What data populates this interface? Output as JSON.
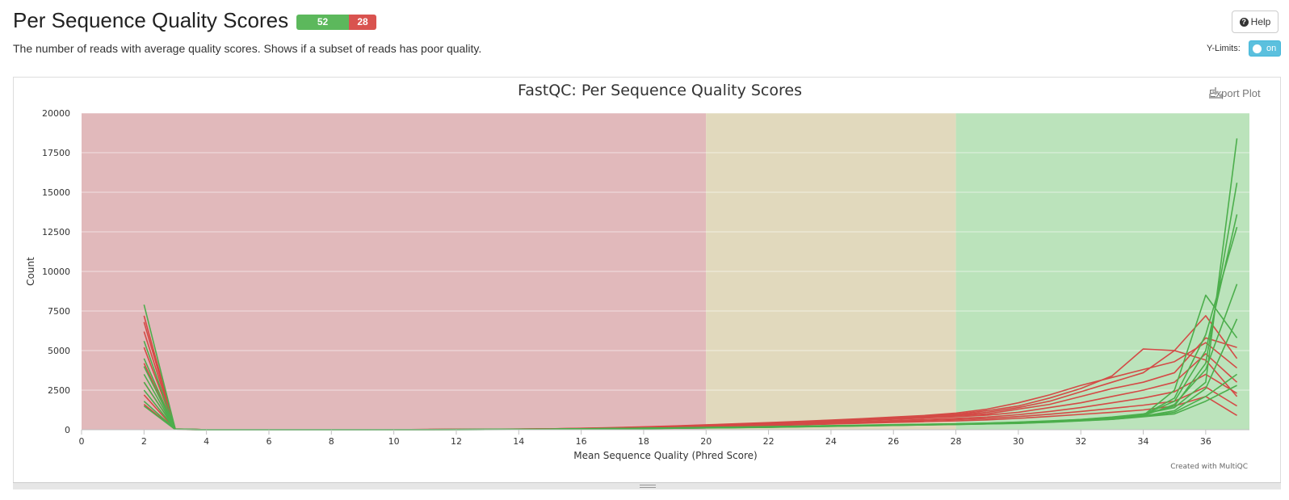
{
  "header": {
    "title": "Per Sequence Quality Scores",
    "badge_pass": "52",
    "badge_fail": "28",
    "subtitle": "The number of reads with average quality scores. Shows if a subset of reads has poor quality.",
    "help_label": "Help",
    "ylimits_label": "Y-Limits:",
    "toggle_label": "on"
  },
  "plot": {
    "export_label": "Export Plot",
    "credit": "Created with MultiQC"
  },
  "colors": {
    "pass": "#5cb85c",
    "fail": "#d9534f",
    "toggle": "#5bc0de",
    "zone_bad": "#e1b9bb",
    "zone_warn": "#e1d9bd",
    "zone_good": "#bbe3bb",
    "line_pass": "#4cae4c",
    "line_fail": "#d44a46"
  },
  "chart_data": {
    "type": "line",
    "title": "FastQC: Per Sequence Quality Scores",
    "xlabel": "Mean Sequence Quality (Phred Score)",
    "ylabel": "Count",
    "xlim": [
      0,
      37.4
    ],
    "ylim": [
      0,
      20000
    ],
    "x_ticks": [
      0,
      2,
      4,
      6,
      8,
      10,
      12,
      14,
      16,
      18,
      20,
      22,
      24,
      26,
      28,
      30,
      32,
      34,
      36
    ],
    "y_ticks": [
      0,
      2500,
      5000,
      7500,
      10000,
      12500,
      15000,
      17500,
      20000
    ],
    "grid": true,
    "legend": "none",
    "bands": [
      {
        "from": 0,
        "to": 20,
        "zone": "bad"
      },
      {
        "from": 20,
        "to": 28,
        "zone": "warn"
      },
      {
        "from": 28,
        "to": 37.4,
        "zone": "good"
      }
    ],
    "x": [
      2,
      3,
      4,
      5,
      6,
      7,
      8,
      9,
      10,
      11,
      12,
      13,
      14,
      15,
      16,
      17,
      18,
      19,
      20,
      21,
      22,
      23,
      24,
      25,
      26,
      27,
      28,
      29,
      30,
      31,
      32,
      33,
      34,
      35,
      36,
      37
    ],
    "series": [
      {
        "status": "pass",
        "values": [
          7900,
          50,
          2,
          2,
          3,
          3,
          4,
          5,
          6,
          10,
          15,
          20,
          30,
          40,
          60,
          80,
          100,
          120,
          150,
          170,
          200,
          230,
          260,
          290,
          320,
          350,
          380,
          420,
          480,
          560,
          650,
          800,
          1000,
          1400,
          3000,
          18400
        ]
      },
      {
        "status": "pass",
        "values": [
          5600,
          40,
          2,
          2,
          3,
          3,
          4,
          5,
          6,
          9,
          14,
          19,
          28,
          38,
          55,
          75,
          95,
          115,
          140,
          160,
          190,
          220,
          250,
          280,
          310,
          340,
          370,
          410,
          470,
          540,
          640,
          780,
          980,
          1500,
          4200,
          15600
        ]
      },
      {
        "status": "pass",
        "values": [
          4500,
          35,
          2,
          2,
          3,
          3,
          4,
          5,
          6,
          9,
          13,
          18,
          27,
          36,
          52,
          70,
          90,
          110,
          135,
          155,
          185,
          210,
          240,
          270,
          300,
          330,
          360,
          400,
          460,
          530,
          620,
          760,
          950,
          1800,
          5000,
          13600
        ]
      },
      {
        "status": "pass",
        "values": [
          4000,
          30,
          2,
          2,
          3,
          3,
          4,
          5,
          6,
          8,
          12,
          17,
          25,
          35,
          50,
          68,
          88,
          108,
          130,
          150,
          175,
          205,
          235,
          265,
          295,
          325,
          355,
          395,
          450,
          520,
          610,
          740,
          930,
          2000,
          6000,
          12800
        ]
      },
      {
        "status": "pass",
        "values": [
          3500,
          30,
          2,
          2,
          3,
          3,
          4,
          5,
          6,
          8,
          12,
          16,
          24,
          33,
          48,
          65,
          85,
          105,
          125,
          145,
          170,
          200,
          230,
          260,
          290,
          320,
          350,
          390,
          440,
          510,
          600,
          720,
          900,
          2500,
          8500,
          5800
        ]
      },
      {
        "status": "pass",
        "values": [
          3000,
          25,
          2,
          2,
          3,
          3,
          4,
          5,
          6,
          8,
          11,
          15,
          22,
          30,
          45,
          62,
          80,
          100,
          120,
          140,
          165,
          195,
          225,
          255,
          285,
          315,
          345,
          380,
          430,
          500,
          590,
          700,
          880,
          1600,
          3800,
          9200
        ]
      },
      {
        "status": "pass",
        "values": [
          2500,
          20,
          2,
          2,
          3,
          3,
          4,
          5,
          6,
          7,
          10,
          14,
          20,
          28,
          42,
          60,
          78,
          98,
          118,
          138,
          160,
          190,
          220,
          250,
          280,
          310,
          340,
          375,
          420,
          490,
          580,
          680,
          860,
          1200,
          2600,
          7000
        ]
      },
      {
        "status": "pass",
        "values": [
          1800,
          20,
          2,
          2,
          3,
          3,
          4,
          5,
          6,
          7,
          10,
          13,
          19,
          26,
          40,
          58,
          75,
          95,
          115,
          135,
          155,
          185,
          215,
          245,
          275,
          305,
          335,
          370,
          410,
          480,
          570,
          660,
          840,
          1100,
          2100,
          3500
        ]
      },
      {
        "status": "pass",
        "values": [
          1500,
          15,
          2,
          2,
          3,
          3,
          4,
          5,
          6,
          7,
          9,
          12,
          18,
          25,
          38,
          55,
          72,
          92,
          112,
          130,
          150,
          180,
          210,
          240,
          270,
          300,
          330,
          365,
          400,
          470,
          560,
          650,
          820,
          1000,
          1800,
          2800
        ]
      },
      {
        "status": "fail",
        "values": [
          7200,
          50,
          3,
          3,
          4,
          5,
          6,
          8,
          10,
          15,
          22,
          30,
          42,
          58,
          90,
          130,
          180,
          240,
          310,
          380,
          450,
          530,
          610,
          700,
          800,
          900,
          1050,
          1300,
          1700,
          2200,
          2800,
          3300,
          3800,
          4300,
          5500,
          3900
        ]
      },
      {
        "status": "fail",
        "values": [
          6800,
          45,
          3,
          3,
          4,
          5,
          6,
          8,
          10,
          14,
          20,
          28,
          40,
          55,
          85,
          120,
          170,
          230,
          290,
          360,
          430,
          510,
          590,
          680,
          780,
          880,
          980,
          1200,
          1500,
          2000,
          2600,
          3400,
          5100,
          5000,
          4400,
          2100
        ]
      },
      {
        "status": "fail",
        "values": [
          6200,
          40,
          3,
          3,
          4,
          5,
          6,
          8,
          10,
          13,
          19,
          27,
          38,
          52,
          80,
          115,
          160,
          220,
          280,
          340,
          410,
          490,
          570,
          660,
          750,
          840,
          930,
          1100,
          1400,
          1800,
          2400,
          3000,
          3600,
          5000,
          7200,
          4500
        ]
      },
      {
        "status": "fail",
        "values": [
          5200,
          35,
          3,
          3,
          4,
          5,
          6,
          8,
          10,
          12,
          18,
          25,
          35,
          48,
          75,
          110,
          150,
          200,
          260,
          320,
          390,
          460,
          540,
          620,
          710,
          800,
          890,
          1000,
          1300,
          1600,
          2100,
          2600,
          3000,
          3600,
          5800,
          5200
        ]
      },
      {
        "status": "fail",
        "values": [
          4200,
          30,
          3,
          3,
          4,
          5,
          6,
          7,
          9,
          12,
          17,
          23,
          33,
          45,
          70,
          100,
          140,
          190,
          240,
          300,
          360,
          430,
          500,
          580,
          660,
          740,
          820,
          920,
          1100,
          1400,
          1700,
          2100,
          2500,
          3000,
          4800,
          3000
        ]
      },
      {
        "status": "fail",
        "values": [
          3000,
          25,
          3,
          3,
          4,
          5,
          6,
          7,
          9,
          11,
          16,
          22,
          31,
          42,
          65,
          95,
          130,
          170,
          220,
          270,
          320,
          380,
          440,
          510,
          580,
          650,
          720,
          800,
          950,
          1150,
          1400,
          1700,
          2000,
          2400,
          3500,
          2300
        ]
      },
      {
        "status": "fail",
        "values": [
          2200,
          20,
          3,
          3,
          4,
          5,
          6,
          7,
          9,
          11,
          15,
          20,
          29,
          40,
          60,
          90,
          120,
          160,
          200,
          245,
          290,
          340,
          400,
          460,
          520,
          580,
          640,
          710,
          830,
          980,
          1150,
          1350,
          1550,
          1800,
          2700,
          1500
        ]
      },
      {
        "status": "fail",
        "values": [
          1600,
          15,
          3,
          3,
          4,
          5,
          6,
          7,
          8,
          10,
          14,
          19,
          27,
          37,
          55,
          85,
          110,
          150,
          185,
          225,
          265,
          310,
          360,
          410,
          460,
          510,
          560,
          620,
          720,
          840,
          970,
          1100,
          1250,
          1500,
          2100,
          900
        ]
      }
    ]
  }
}
